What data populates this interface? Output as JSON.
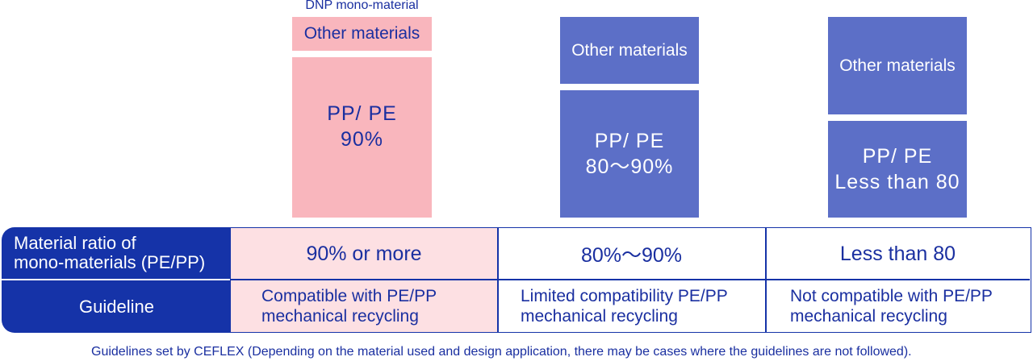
{
  "dnp_label": "DNP mono-material",
  "columns": [
    {
      "other_label": "Other materials",
      "main_label": "PP/ PE\n90%",
      "ratio": "90% or more",
      "guideline": "Compatible with PE/PP\nmechanical recycling",
      "color": "#f9b6bd"
    },
    {
      "other_label": "Other materials",
      "main_label": "PP/ PE\n80～90%",
      "ratio": "80%～90%",
      "guideline": "Limited compatibility PE/PP\nmechanical recycling",
      "color": "#5c6fc7"
    },
    {
      "other_label": "Other materials",
      "main_label": "PP/ PE\nLess than 80",
      "ratio": "Less than 80",
      "guideline": "Not compatible with PE/PP\nmechanical recycling",
      "color": "#5c6fc7"
    }
  ],
  "row_headers": {
    "ratio": "Material ratio of\nmono-materials (PE/PP)",
    "guideline": "Guideline"
  },
  "footnote": "Guidelines set by CEFLEX (Depending on the material used and design application, there may be cases where the guidelines are not followed).",
  "colors": {
    "navy": "#1533a8",
    "text_blue": "#1a2fa0",
    "pink_light": "#fde0e3"
  }
}
